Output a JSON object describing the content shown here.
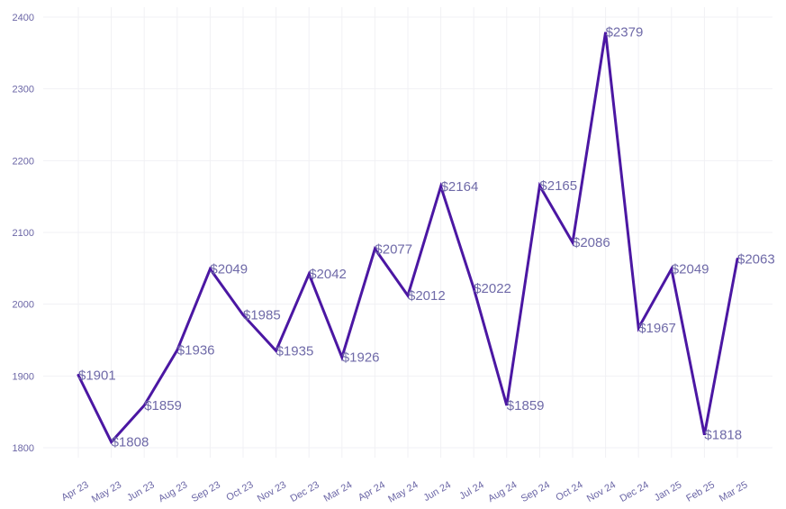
{
  "chart_data": {
    "type": "line",
    "title": "",
    "xlabel": "",
    "ylabel": "",
    "ylim": [
      1780,
      2410
    ],
    "y_ticks": [
      1800,
      1900,
      2000,
      2100,
      2200,
      2300,
      2400
    ],
    "grid": true,
    "colors": {
      "line": "#4b17a3",
      "labels": "#6f6aa8",
      "ticks": "#6b66a6",
      "grid": "#f1f1f4"
    },
    "categories": [
      "Apr 23",
      "May 23",
      "Jun 23",
      "Aug 23",
      "Sep 23",
      "Oct 23",
      "Nov 23",
      "Dec 23",
      "Mar 24",
      "Apr 24",
      "May 24",
      "Jun 24",
      "Jul 24",
      "Aug 24",
      "Sep 24",
      "Oct 24",
      "Nov 24",
      "Dec 24",
      "Jan 25",
      "Feb 25",
      "Mar 25"
    ],
    "series": [
      {
        "values": [
          1901,
          1808,
          1859,
          1936,
          2049,
          1985,
          1935,
          2042,
          1926,
          2077,
          2012,
          2164,
          2022,
          1859,
          2165,
          2086,
          2379,
          1967,
          2049,
          1818,
          2063
        ],
        "labels": [
          "$1901",
          "$1808",
          "$1859",
          "$1936",
          "$2049",
          "$1985",
          "$1935",
          "$2042",
          "$1926",
          "$2077",
          "$2012",
          "$2164",
          "$2022",
          "$1859",
          "$2165",
          "$2086",
          "$2379",
          "$1967",
          "$2049",
          "$1818",
          "$2063"
        ]
      }
    ]
  }
}
